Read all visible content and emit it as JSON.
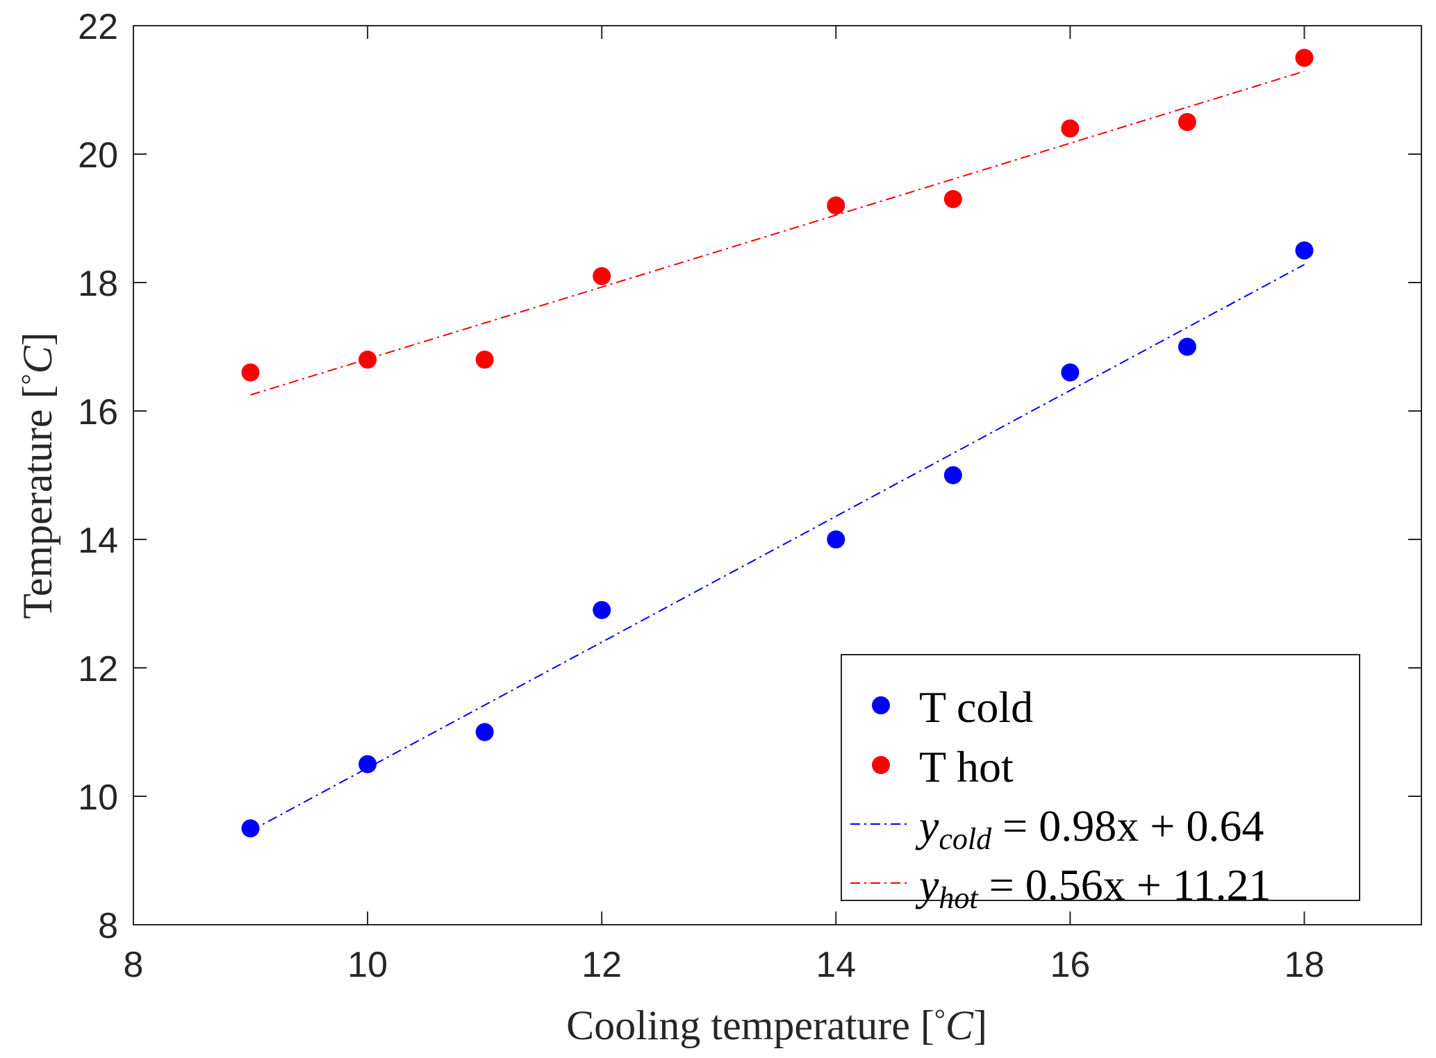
{
  "chart_data": {
    "type": "scatter",
    "title": "",
    "xlabel": "Cooling temperature [°C]",
    "ylabel": "Temperature [°C]",
    "xlim": [
      8,
      19
    ],
    "ylim": [
      8,
      22
    ],
    "xticks": [
      8,
      10,
      12,
      14,
      16,
      18
    ],
    "yticks": [
      8,
      10,
      12,
      14,
      16,
      18,
      20,
      22
    ],
    "grid": false,
    "legend_position": "bottom-right",
    "series": [
      {
        "name": "T cold",
        "kind": "scatter",
        "color": "#0000ff",
        "x": [
          9,
          10,
          11,
          12,
          14,
          15,
          16,
          17,
          18
        ],
        "y": [
          9.5,
          10.5,
          11.0,
          12.9,
          14.0,
          15.0,
          16.6,
          17.0,
          18.5
        ]
      },
      {
        "name": "T hot",
        "kind": "scatter",
        "color": "#ff0000",
        "x": [
          9,
          10,
          11,
          12,
          14,
          15,
          16,
          17,
          18
        ],
        "y": [
          16.6,
          16.8,
          16.8,
          18.1,
          19.2,
          19.3,
          20.4,
          20.5,
          21.5
        ]
      },
      {
        "name": "y_cold = 0.98x + 0.64",
        "kind": "fit-line",
        "line_style": "dash-dot",
        "color": "#0000ff",
        "slope": 0.98,
        "intercept": 0.64,
        "x_range": [
          9,
          18
        ]
      },
      {
        "name": "y_hot = 0.56x + 11.21",
        "kind": "fit-line",
        "line_style": "dash-dot",
        "color": "#ff0000",
        "slope": 0.56,
        "intercept": 11.21,
        "x_range": [
          9,
          18
        ]
      }
    ],
    "legend": {
      "entries": [
        {
          "label": "T cold",
          "marker": "dot",
          "color": "#0000ff"
        },
        {
          "label": "T hot",
          "marker": "dot",
          "color": "#ff0000"
        },
        {
          "label_main": "y",
          "label_sub": "cold",
          "label_rest": " = 0.98x + 0.64",
          "marker": "dash-dot",
          "color": "#0000ff"
        },
        {
          "label_main": "y",
          "label_sub": "hot",
          "label_rest": " = 0.56x + 11.21",
          "marker": "dash-dot",
          "color": "#ff0000"
        }
      ]
    }
  },
  "labels": {
    "xlabel_text": "Cooling temperature [",
    "xlabel_degree": "°",
    "xlabel_unit": "C",
    "xlabel_close": "]",
    "ylabel_text": "Temperature [",
    "ylabel_degree": "°",
    "ylabel_unit": "C",
    "ylabel_close": "]"
  }
}
